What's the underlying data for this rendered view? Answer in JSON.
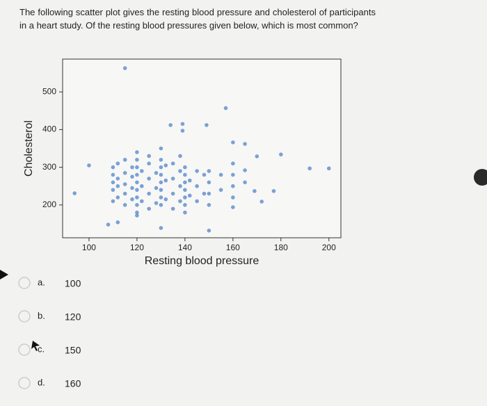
{
  "question": "The following scatter plot gives the resting blood pressure and cholesterol of participants in a heart study. Of the resting blood pressures given below, which is most common?",
  "chart_data": {
    "type": "scatter",
    "xlabel": "Resting blood pressure",
    "ylabel": "Cholesterol",
    "xlim": [
      89,
      205
    ],
    "ylim": [
      113,
      587
    ],
    "xticks": [
      100,
      120,
      140,
      160,
      180,
      200
    ],
    "yticks": [
      200,
      300,
      400,
      500
    ],
    "color": "#5a8bcc",
    "x": [
      115,
      180,
      200,
      192,
      165,
      149,
      139,
      139,
      134,
      157,
      94,
      100,
      108,
      112,
      120,
      130,
      150,
      160,
      172,
      169,
      177,
      170,
      165,
      160,
      110,
      110,
      110,
      110,
      110,
      112,
      112,
      112,
      112,
      115,
      115,
      115,
      115,
      115,
      118,
      118,
      118,
      118,
      120,
      120,
      120,
      120,
      120,
      120,
      120,
      120,
      120,
      122,
      122,
      122,
      125,
      125,
      125,
      125,
      125,
      128,
      128,
      128,
      130,
      130,
      130,
      130,
      130,
      130,
      130,
      130,
      132,
      132,
      132,
      135,
      135,
      135,
      135,
      138,
      138,
      138,
      138,
      140,
      140,
      140,
      140,
      140,
      140,
      140,
      142,
      142,
      145,
      145,
      145,
      148,
      148,
      150,
      150,
      150,
      150,
      155,
      155,
      160,
      160,
      160,
      160,
      165
    ],
    "y": [
      563,
      334,
      297,
      297,
      362,
      412,
      415,
      397,
      412,
      457,
      231,
      305,
      148,
      154,
      172,
      139,
      132,
      194,
      209,
      237,
      237,
      329,
      292,
      366,
      210,
      240,
      260,
      280,
      300,
      220,
      250,
      270,
      310,
      200,
      230,
      255,
      285,
      320,
      215,
      245,
      275,
      300,
      180,
      200,
      220,
      240,
      260,
      280,
      300,
      320,
      340,
      210,
      250,
      290,
      190,
      230,
      270,
      310,
      330,
      205,
      245,
      285,
      200,
      220,
      240,
      260,
      280,
      300,
      320,
      350,
      215,
      265,
      305,
      190,
      230,
      270,
      310,
      210,
      250,
      290,
      330,
      180,
      200,
      220,
      240,
      260,
      280,
      300,
      225,
      265,
      210,
      250,
      290,
      230,
      280,
      200,
      230,
      260,
      290,
      240,
      280,
      220,
      250,
      280,
      310,
      260
    ]
  },
  "options": [
    {
      "letter": "a.",
      "text": "100"
    },
    {
      "letter": "b.",
      "text": "120"
    },
    {
      "letter": "c.",
      "text": "150"
    },
    {
      "letter": "d.",
      "text": "160"
    }
  ]
}
